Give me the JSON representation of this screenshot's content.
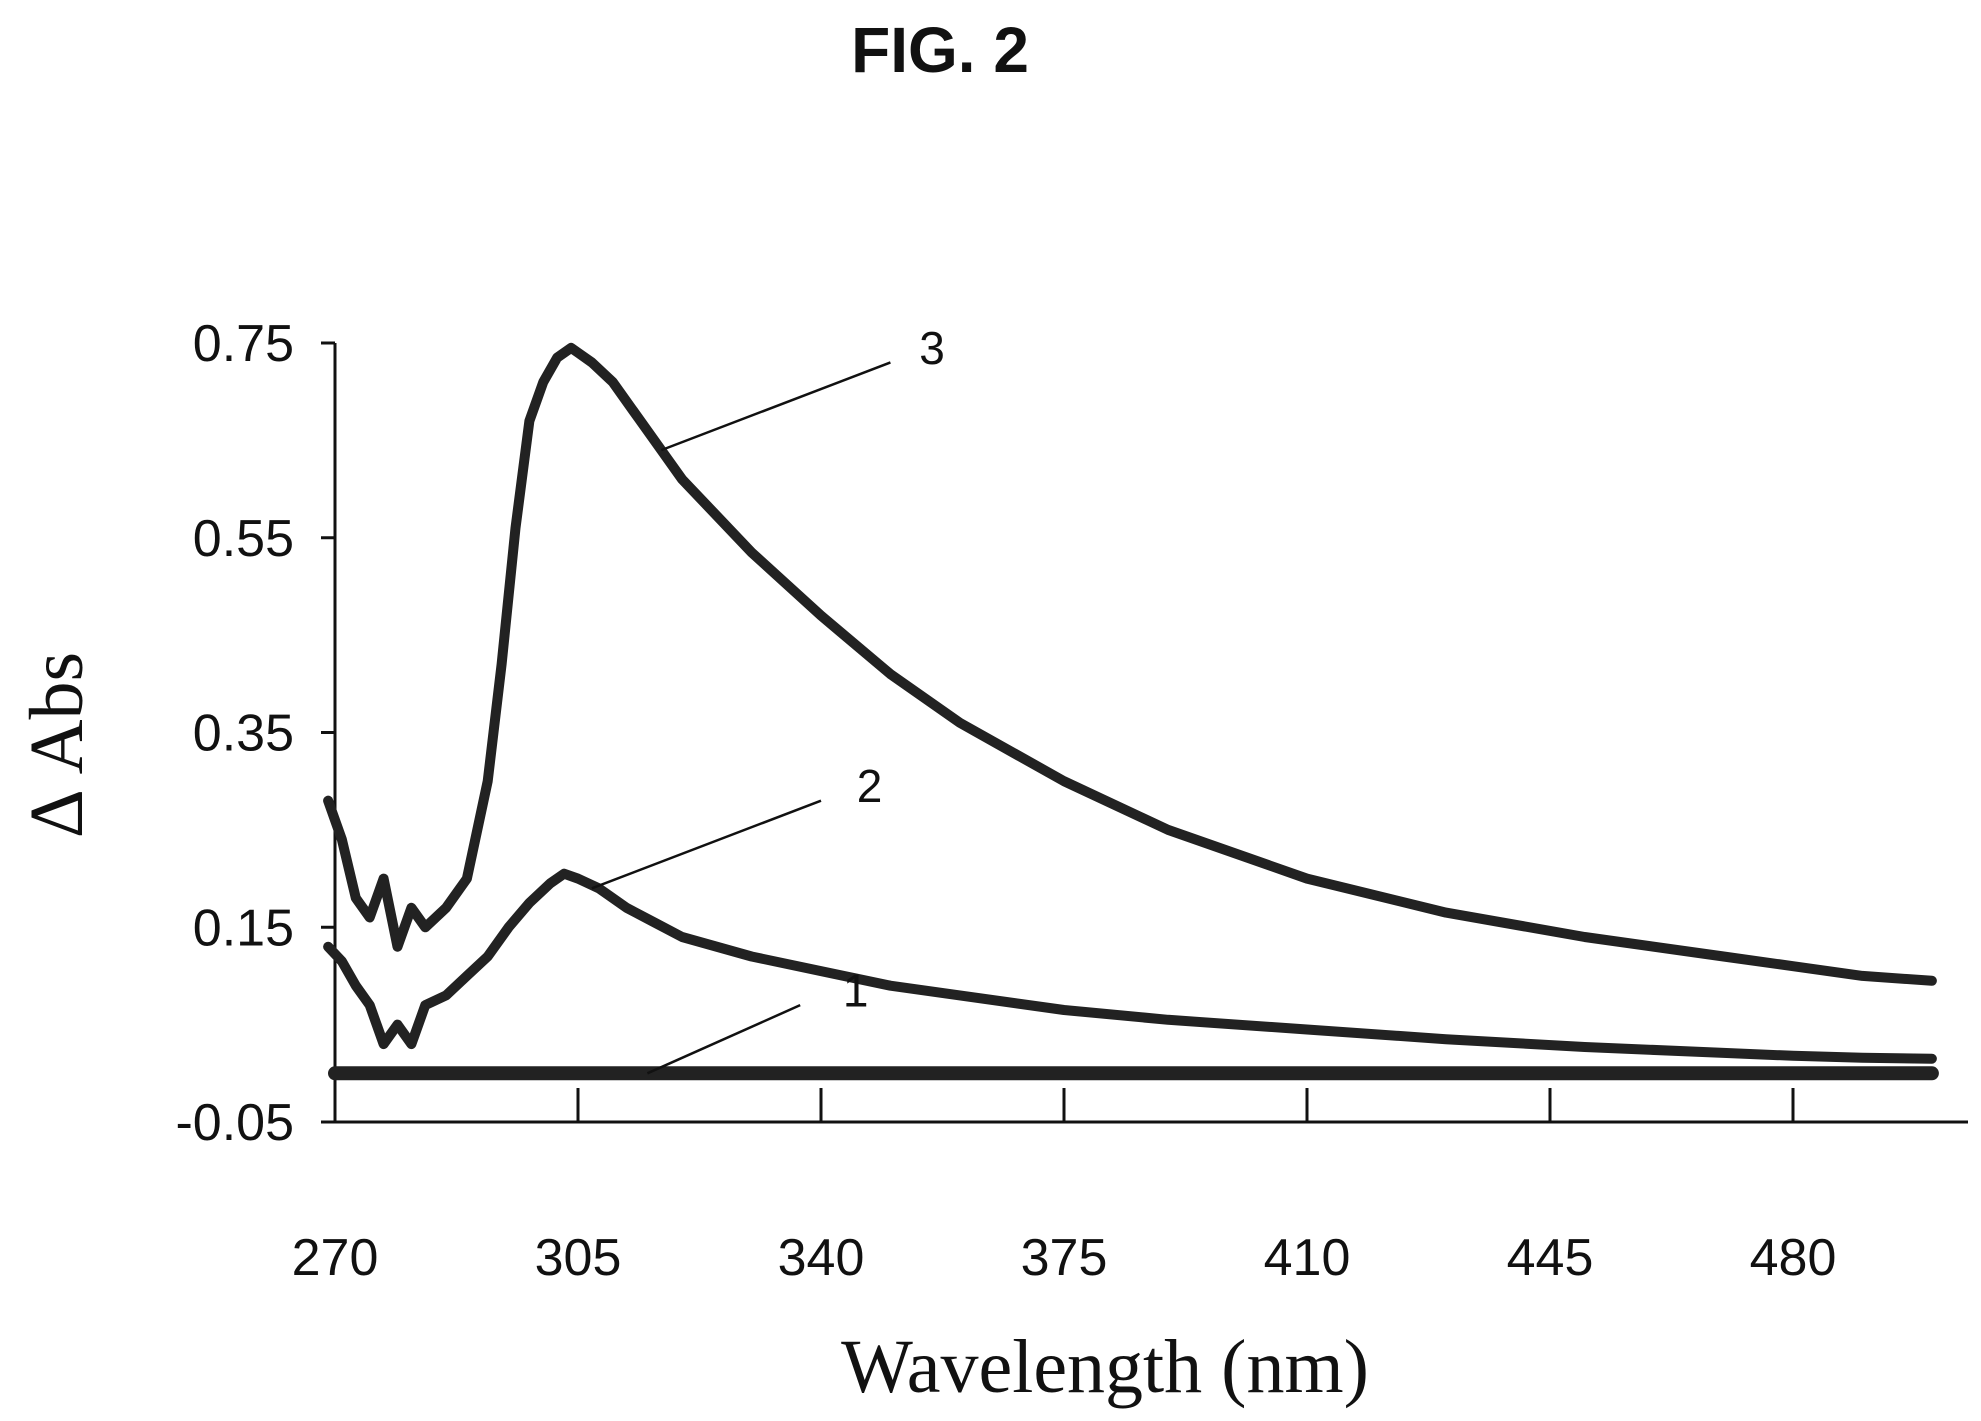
{
  "figure_label": "FIG. 2",
  "chart_data": {
    "type": "line",
    "title": "",
    "xlabel": "Wavelength (nm)",
    "ylabel": "Δ Abs",
    "xlim": [
      270,
      500
    ],
    "ylim": [
      -0.05,
      0.75
    ],
    "x_ticks": [
      270,
      305,
      340,
      375,
      410,
      445,
      480
    ],
    "x_tick_labels": [
      "270",
      "305",
      "340",
      "375",
      "410",
      "445",
      "480"
    ],
    "y_ticks": [
      -0.05,
      0.15,
      0.35,
      0.55,
      0.75
    ],
    "y_tick_labels": [
      "-0.05",
      "0.15",
      "0.35",
      "0.55",
      "0.75"
    ],
    "grid": false,
    "legend": "none",
    "series": [
      {
        "name": "1",
        "x": [
          270,
          305,
          340,
          375,
          410,
          445,
          480,
          500
        ],
        "y": [
          0.0,
          0.0,
          0.0,
          0.0,
          0.0,
          0.0,
          0.0,
          0.0
        ]
      },
      {
        "name": "2",
        "x": [
          269,
          271,
          273,
          275,
          277,
          279,
          281,
          283,
          286,
          289,
          292,
          295,
          298,
          301,
          303,
          305,
          308,
          312,
          316,
          320,
          330,
          340,
          350,
          360,
          375,
          390,
          410,
          430,
          450,
          470,
          480,
          490,
          500
        ],
        "y": [
          0.13,
          0.115,
          0.09,
          0.07,
          0.03,
          0.05,
          0.03,
          0.07,
          0.08,
          0.1,
          0.12,
          0.15,
          0.175,
          0.195,
          0.205,
          0.2,
          0.19,
          0.17,
          0.155,
          0.14,
          0.12,
          0.105,
          0.09,
          0.08,
          0.065,
          0.055,
          0.045,
          0.035,
          0.027,
          0.021,
          0.018,
          0.016,
          0.015
        ]
      },
      {
        "name": "3",
        "x": [
          269,
          271,
          273,
          275,
          277,
          279,
          281,
          283,
          286,
          289,
          292,
          294,
          296,
          298,
          300,
          302,
          304,
          305,
          307,
          310,
          313,
          317,
          320,
          330,
          340,
          350,
          360,
          375,
          390,
          410,
          430,
          450,
          470,
          480,
          490,
          500
        ],
        "y": [
          0.28,
          0.24,
          0.18,
          0.16,
          0.2,
          0.13,
          0.17,
          0.15,
          0.17,
          0.2,
          0.3,
          0.42,
          0.56,
          0.67,
          0.71,
          0.735,
          0.745,
          0.74,
          0.73,
          0.71,
          0.68,
          0.64,
          0.61,
          0.535,
          0.47,
          0.41,
          0.36,
          0.3,
          0.25,
          0.2,
          0.165,
          0.14,
          0.12,
          0.11,
          0.1,
          0.095
        ]
      }
    ]
  }
}
